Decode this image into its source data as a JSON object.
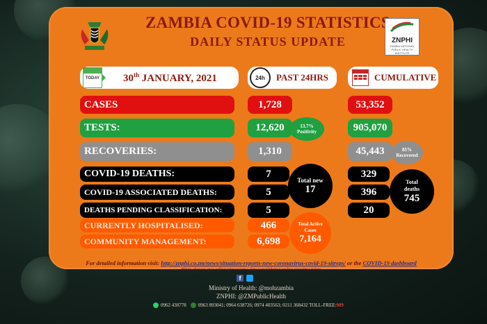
{
  "header": {
    "title": "ZAMBIA COVID-19 STATISTICS",
    "subtitle": "DAILY STATUS UPDATE",
    "org_logo_text": "ZNPHI"
  },
  "columns": {
    "date_label": "30th JANUARY, 2021",
    "date_day": "30",
    "date_sup": "th",
    "date_rest": " JANUARY, 2021",
    "today_icon_text": "TODAY",
    "past_label": "PAST 24HRS",
    "past_icon_text": "24h",
    "cumulative_label": "CUMULATIVE"
  },
  "rows": {
    "cases": {
      "label": "CASES",
      "past": "1,728",
      "cumulative": "53,352"
    },
    "tests": {
      "label": "TESTS:",
      "past": "12,620",
      "cumulative": "905,070",
      "positivity_value": "13.7%",
      "positivity_label": "Positivity"
    },
    "recoveries": {
      "label": "RECOVERIES:",
      "past": "1,310",
      "cumulative": "45,443",
      "recovered_value": "85%",
      "recovered_label": "Recovered"
    },
    "deaths": {
      "label": "COVID-19 DEATHS:",
      "past": "7",
      "cumulative": "329"
    },
    "associated_deaths": {
      "label": "COVID-19 ASSOCIATED DEATHS:",
      "past": "5",
      "cumulative": "396"
    },
    "pending": {
      "label": "DEATHS PENDING CLASSIFICATION:",
      "past": "5",
      "cumulative": "20"
    },
    "hospitalised": {
      "label": "CURRENTLY HOSPITALISED:",
      "past": "466"
    },
    "community": {
      "label": "COMMUNITY MANAGEMENT:",
      "past": "6,698"
    }
  },
  "totals": {
    "new_label": "Total new",
    "new_value": "17",
    "deaths_label": "Total deaths",
    "deaths_value": "745",
    "active_label": "Total Active Cases",
    "active_value": "7,164"
  },
  "footer": {
    "info_prefix": "For detailed information visit: ",
    "info_link": "http://znphi.co.zm/news/situation-reports-new-coronavirus-covid-19-sitreps/",
    "info_or": " or the ",
    "dashboard_link": "COVID-19 dashboard",
    "disclaimer": "*Data changes may reflect retrospective data consolidation and/or reporting delays",
    "ministry": "Ministry of Health: @mohzambia",
    "znphi_handle": "ZNPHI: @ZMPublicHealth",
    "phone_whatsapp": "0962 430778",
    "phones": "0963 893041; 0964 638726; 0974 403563; 0211 368432 TOLL-FREE: ",
    "tollfree": "909"
  },
  "colors": {
    "panel": "#ec7a1a",
    "title": "#8b1a0e",
    "cases_red": "#e01010",
    "tests_green": "#20a040",
    "recoveries_gray": "#8f8f8f",
    "deaths_black": "#000000",
    "hospital_orange": "#ff5a00"
  },
  "icons": {
    "calendar": "calendar-icon",
    "clock": "clock-24h-icon",
    "cumulative": "calendar-grid-icon",
    "facebook": "facebook-icon",
    "twitter": "twitter-icon",
    "whatsapp": "whatsapp-icon",
    "phone": "phone-icon"
  }
}
